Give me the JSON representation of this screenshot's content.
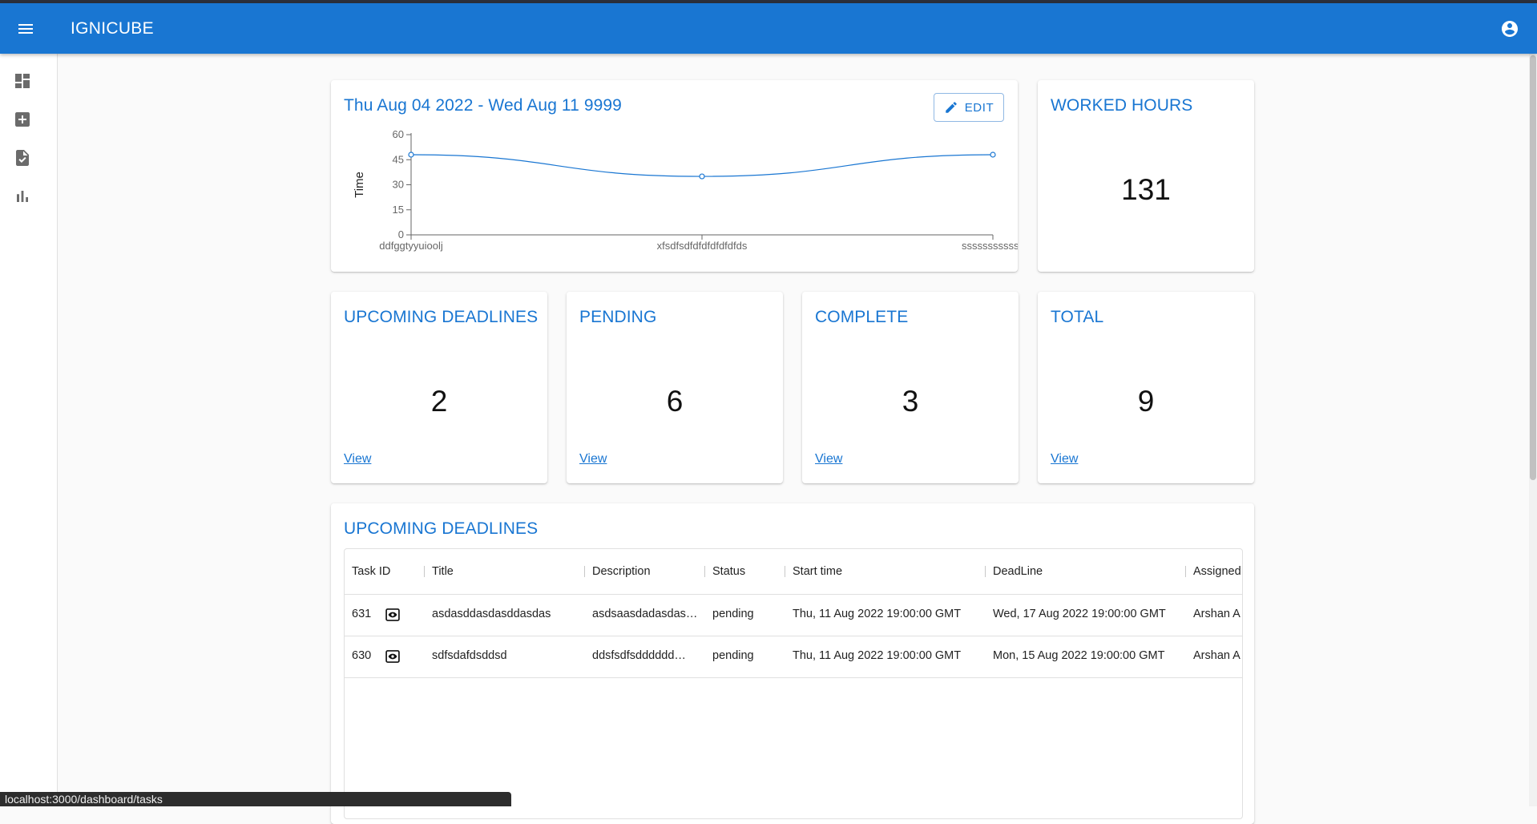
{
  "appbar": {
    "brand": "IGNICUBE"
  },
  "sidebar": {
    "items": [
      "dashboard-icon",
      "add-box-icon",
      "task-file-icon",
      "bar-chart-icon"
    ]
  },
  "range_card": {
    "title": "Thu Aug 04 2022 - Wed Aug 11 9999",
    "edit_label": "EDIT"
  },
  "chart_data": {
    "type": "line",
    "categories": [
      "ddfggtyyuioolj",
      "xfsdfsdfdfdfdfdfdfds",
      "ssssssssssss"
    ],
    "values": [
      48,
      35,
      48
    ],
    "ylabel": "Time",
    "xlabel": "",
    "ylim": [
      0,
      60
    ],
    "yticks": [
      0,
      15,
      30,
      45,
      60
    ],
    "ytick_labels": [
      "0",
      "15",
      "30",
      "45",
      "60"
    ],
    "grid": false,
    "color": "#1976d2"
  },
  "worked": {
    "title": "WORKED HOURS",
    "value": "131"
  },
  "stats": [
    {
      "title": "UPCOMING DEADLINES",
      "value": "2",
      "link": "View"
    },
    {
      "title": "PENDING",
      "value": "6",
      "link": "View"
    },
    {
      "title": "COMPLETE",
      "value": "3",
      "link": "View"
    },
    {
      "title": "TOTAL",
      "value": "9",
      "link": "View"
    }
  ],
  "deadlines": {
    "title": "UPCOMING DEADLINES",
    "columns": [
      "Task ID",
      "Title",
      "Description",
      "Status",
      "Start time",
      "DeadLine",
      "Assigned"
    ],
    "rows": [
      {
        "id": "631",
        "title": "asdasddasdasddasdas",
        "description": "asdsaasdadasdas…",
        "status": "pending",
        "start": "Thu, 11 Aug 2022 19:00:00 GMT",
        "deadline": "Wed, 17 Aug 2022 19:00:00 GMT",
        "assigned": "Arshan A"
      },
      {
        "id": "630",
        "title": "sdfsdafdsddsd",
        "description": "ddsfsdfsdddddd…",
        "status": "pending",
        "start": "Thu, 11 Aug 2022 19:00:00 GMT",
        "deadline": "Mon, 15 Aug 2022 19:00:00 GMT",
        "assigned": "Arshan A"
      }
    ]
  },
  "status_bar": {
    "url": "localhost:3000/dashboard/tasks"
  },
  "colors": {
    "primary": "#1976d2",
    "background": "#fafafa"
  }
}
